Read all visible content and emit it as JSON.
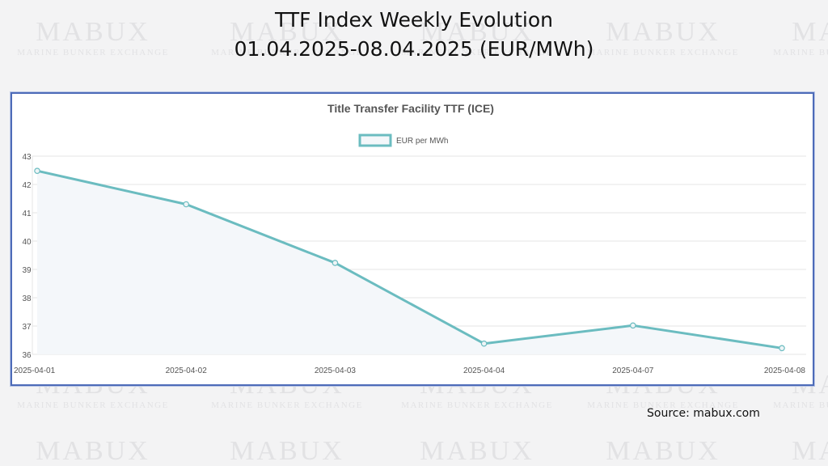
{
  "header": {
    "title_line1": "TTF Index Weekly Evolution",
    "title_line2": "01.04.2025-08.04.2025 (EUR/MWh)"
  },
  "watermark": {
    "brand": "MABUX",
    "tagline": "MARINE BUNKER EXCHANGE"
  },
  "footer": {
    "source": "Source: mabux.com"
  },
  "colors": {
    "line": "#6bbcc0",
    "fill": "#f4f7fa",
    "panel_border": "#4d6bb8"
  },
  "chart_data": {
    "type": "line",
    "title": "Title Transfer Facility TTF (ICE)",
    "xlabel": "",
    "ylabel": "",
    "categories": [
      "2025-04-01",
      "2025-04-02",
      "2025-04-03",
      "2025-04-04",
      "2025-04-07",
      "2025-04-08"
    ],
    "series": [
      {
        "name": "EUR per MWh",
        "values": [
          42.48,
          41.3,
          39.23,
          36.38,
          37.02,
          36.22
        ]
      }
    ],
    "ylim": [
      36,
      43
    ],
    "yticks": [
      36,
      37,
      38,
      39,
      40,
      41,
      42,
      43
    ],
    "grid": true,
    "legend_position": "top-center"
  }
}
